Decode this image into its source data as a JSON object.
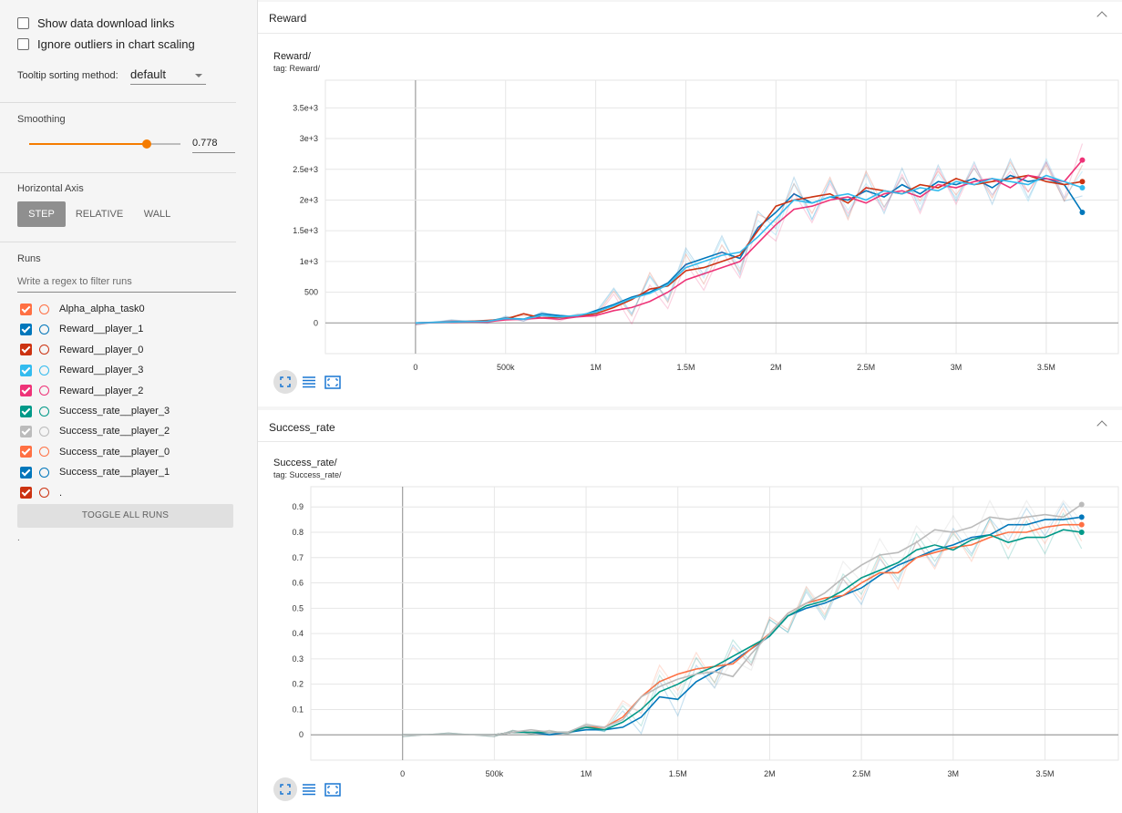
{
  "sidebar": {
    "show_download": "Show data download links",
    "ignore_outliers": "Ignore outliers in chart scaling",
    "tooltip_label": "Tooltip sorting method:",
    "tooltip_value": "default",
    "smoothing_label": "Smoothing",
    "smoothing_value": "0.778",
    "smoothing_fraction": 0.778,
    "horizontal_axis_label": "Horizontal Axis",
    "axis_options": [
      "STEP",
      "RELATIVE",
      "WALL"
    ],
    "runs_label": "Runs",
    "filter_placeholder": "Write a regex to filter runs",
    "runs": [
      {
        "name": "Alpha_alpha_task0",
        "color": "#ff7043"
      },
      {
        "name": "Reward__player_1",
        "color": "#0077bb"
      },
      {
        "name": "Reward__player_0",
        "color": "#cc3311"
      },
      {
        "name": "Reward__player_3",
        "color": "#33bbee"
      },
      {
        "name": "Reward__player_2",
        "color": "#ee3377"
      },
      {
        "name": "Success_rate__player_3",
        "color": "#009988"
      },
      {
        "name": "Success_rate__player_2",
        "color": "#bbbbbb"
      },
      {
        "name": "Success_rate__player_0",
        "color": "#ff7043"
      },
      {
        "name": "Success_rate__player_1",
        "color": "#0077bb"
      },
      {
        "name": ".",
        "color": "#cc3311"
      }
    ],
    "toggle_all": "TOGGLE ALL RUNS",
    "footer_dot": "."
  },
  "reward_card": {
    "header": "Reward",
    "chart_title": "Reward/",
    "chart_tag": "tag: Reward/"
  },
  "success_card": {
    "header": "Success_rate",
    "chart_title": "Success_rate/",
    "chart_tag": "tag: Success_rate/"
  },
  "icons": {
    "zoom": "fit-to-screen-icon",
    "data": "data-table-icon",
    "expand": "expand-chart-icon"
  },
  "chart_data": [
    {
      "type": "line",
      "title": "Reward/",
      "x_tick_labels": [
        "0",
        "500k",
        "1M",
        "1.5M",
        "2M",
        "2.5M",
        "3M",
        "3.5M"
      ],
      "y_tick_labels": [
        "0",
        "500",
        "1e+3",
        "1.5e+3",
        "2e+3",
        "2.5e+3",
        "3e+3",
        "3.5e+3"
      ],
      "xlim": [
        -500000,
        3900000
      ],
      "ylim": [
        -500,
        3950
      ],
      "series": [
        {
          "name": "Reward__player_1",
          "color": "#0077bb",
          "x": [
            0,
            200000,
            400000,
            500000,
            600000,
            700000,
            800000,
            900000,
            1000000,
            1100000,
            1200000,
            1300000,
            1400000,
            1500000,
            1600000,
            1700000,
            1800000,
            1900000,
            2000000,
            2100000,
            2200000,
            2300000,
            2400000,
            2500000,
            2600000,
            2700000,
            2800000,
            2900000,
            3000000,
            3100000,
            3200000,
            3300000,
            3400000,
            3500000,
            3600000,
            3700000
          ],
          "y": [
            0,
            20,
            30,
            80,
            60,
            150,
            120,
            100,
            200,
            300,
            420,
            500,
            650,
            950,
            1050,
            1150,
            1050,
            1550,
            1800,
            2100,
            1950,
            2050,
            2000,
            2150,
            2050,
            2250,
            2100,
            2300,
            2250,
            2350,
            2200,
            2400,
            2300,
            2350,
            2250,
            1800
          ]
        },
        {
          "name": "Reward__player_0",
          "color": "#cc3311",
          "x": [
            0,
            200000,
            400000,
            500000,
            600000,
            700000,
            800000,
            900000,
            1000000,
            1100000,
            1200000,
            1300000,
            1400000,
            1500000,
            1600000,
            1700000,
            1800000,
            1900000,
            2000000,
            2100000,
            2200000,
            2300000,
            2400000,
            2500000,
            2600000,
            2700000,
            2800000,
            2900000,
            3000000,
            3100000,
            3200000,
            3300000,
            3400000,
            3500000,
            3600000,
            3700000
          ],
          "y": [
            0,
            10,
            40,
            60,
            150,
            80,
            90,
            110,
            150,
            250,
            380,
            550,
            600,
            850,
            900,
            1000,
            1100,
            1500,
            1900,
            2000,
            2050,
            2100,
            1950,
            2200,
            2150,
            2100,
            2250,
            2200,
            2350,
            2250,
            2300,
            2350,
            2400,
            2300,
            2250,
            2300
          ]
        },
        {
          "name": "Reward__player_2",
          "color": "#ee3377",
          "x": [
            0,
            200000,
            400000,
            500000,
            600000,
            700000,
            800000,
            900000,
            1000000,
            1100000,
            1200000,
            1300000,
            1400000,
            1500000,
            1600000,
            1700000,
            1800000,
            1900000,
            2000000,
            2100000,
            2200000,
            2300000,
            2400000,
            2500000,
            2600000,
            2700000,
            2800000,
            2900000,
            3000000,
            3100000,
            3200000,
            3300000,
            3400000,
            3500000,
            3600000,
            3700000
          ],
          "y": [
            0,
            10,
            20,
            50,
            60,
            80,
            60,
            100,
            120,
            200,
            250,
            350,
            500,
            700,
            800,
            900,
            1000,
            1300,
            1600,
            1850,
            1900,
            2000,
            2050,
            1950,
            2100,
            2150,
            2050,
            2250,
            2200,
            2300,
            2350,
            2200,
            2400,
            2350,
            2300,
            2650
          ]
        },
        {
          "name": "Reward__player_3",
          "color": "#33bbee",
          "x": [
            0,
            200000,
            400000,
            500000,
            600000,
            700000,
            800000,
            900000,
            1000000,
            1100000,
            1200000,
            1300000,
            1400000,
            1500000,
            1600000,
            1700000,
            1800000,
            1900000,
            2000000,
            2100000,
            2200000,
            2300000,
            2400000,
            2500000,
            2600000,
            2700000,
            2800000,
            2900000,
            3000000,
            3100000,
            3200000,
            3300000,
            3400000,
            3500000,
            3600000,
            3700000
          ],
          "y": [
            0,
            15,
            30,
            70,
            60,
            120,
            100,
            120,
            180,
            280,
            400,
            480,
            620,
            900,
            1000,
            1100,
            1150,
            1400,
            1700,
            2000,
            1950,
            2050,
            2100,
            2000,
            2150,
            2100,
            2200,
            2150,
            2300,
            2250,
            2350,
            2300,
            2250,
            2400,
            2300,
            2200
          ]
        }
      ]
    },
    {
      "type": "line",
      "title": "Success_rate/",
      "x_tick_labels": [
        "0",
        "500k",
        "1M",
        "1.5M",
        "2M",
        "2.5M",
        "3M",
        "3.5M"
      ],
      "y_tick_labels": [
        "0",
        "0.1",
        "0.2",
        "0.3",
        "0.4",
        "0.5",
        "0.6",
        "0.7",
        "0.8",
        "0.9"
      ],
      "xlim": [
        -500000,
        3900000
      ],
      "ylim": [
        -0.1,
        0.98
      ],
      "series": [
        {
          "name": "Success_rate__player_1",
          "color": "#0077bb",
          "x": [
            0,
            250000,
            500000,
            600000,
            700000,
            800000,
            900000,
            1000000,
            1100000,
            1200000,
            1300000,
            1400000,
            1500000,
            1600000,
            1700000,
            1800000,
            1900000,
            2000000,
            2100000,
            2200000,
            2300000,
            2400000,
            2500000,
            2600000,
            2700000,
            2800000,
            2900000,
            3000000,
            3100000,
            3200000,
            3300000,
            3400000,
            3500000,
            3600000,
            3700000
          ],
          "y": [
            0,
            0,
            0,
            0.01,
            0.01,
            0.0,
            0.01,
            0.02,
            0.02,
            0.03,
            0.07,
            0.15,
            0.14,
            0.21,
            0.25,
            0.29,
            0.34,
            0.39,
            0.47,
            0.5,
            0.52,
            0.55,
            0.58,
            0.63,
            0.67,
            0.7,
            0.73,
            0.75,
            0.78,
            0.79,
            0.83,
            0.83,
            0.85,
            0.85,
            0.86
          ]
        },
        {
          "name": "Success_rate__player_0",
          "color": "#ff7043",
          "x": [
            0,
            250000,
            500000,
            600000,
            700000,
            800000,
            900000,
            1000000,
            1100000,
            1200000,
            1300000,
            1400000,
            1500000,
            1600000,
            1700000,
            1800000,
            1900000,
            2000000,
            2100000,
            2200000,
            2300000,
            2400000,
            2500000,
            2600000,
            2700000,
            2800000,
            2900000,
            3000000,
            3100000,
            3200000,
            3300000,
            3400000,
            3500000,
            3600000,
            3700000
          ],
          "y": [
            0,
            0,
            0,
            0.01,
            0.01,
            0.01,
            0.01,
            0.03,
            0.03,
            0.07,
            0.15,
            0.21,
            0.24,
            0.26,
            0.27,
            0.28,
            0.34,
            0.4,
            0.48,
            0.52,
            0.54,
            0.55,
            0.6,
            0.64,
            0.64,
            0.7,
            0.72,
            0.74,
            0.75,
            0.78,
            0.8,
            0.8,
            0.82,
            0.83,
            0.83
          ]
        },
        {
          "name": "Success_rate__player_3",
          "color": "#009988",
          "x": [
            0,
            250000,
            500000,
            600000,
            700000,
            800000,
            900000,
            1000000,
            1100000,
            1200000,
            1300000,
            1400000,
            1500000,
            1600000,
            1700000,
            1800000,
            1900000,
            2000000,
            2100000,
            2200000,
            2300000,
            2400000,
            2500000,
            2600000,
            2700000,
            2800000,
            2900000,
            3000000,
            3100000,
            3200000,
            3300000,
            3400000,
            3500000,
            3600000,
            3700000
          ],
          "y": [
            0,
            0,
            0,
            0.01,
            0.01,
            0.01,
            0.01,
            0.03,
            0.02,
            0.05,
            0.1,
            0.17,
            0.2,
            0.24,
            0.27,
            0.31,
            0.35,
            0.39,
            0.47,
            0.51,
            0.53,
            0.57,
            0.62,
            0.65,
            0.68,
            0.73,
            0.75,
            0.73,
            0.77,
            0.79,
            0.76,
            0.78,
            0.78,
            0.81,
            0.8
          ]
        },
        {
          "name": "Success_rate__player_2",
          "color": "#bbbbbb",
          "x": [
            0,
            250000,
            500000,
            600000,
            700000,
            800000,
            900000,
            1000000,
            1100000,
            1200000,
            1300000,
            1400000,
            1500000,
            1600000,
            1700000,
            1800000,
            1900000,
            2000000,
            2100000,
            2200000,
            2300000,
            2400000,
            2500000,
            2600000,
            2700000,
            2800000,
            2900000,
            3000000,
            3100000,
            3200000,
            3300000,
            3400000,
            3500000,
            3600000,
            3700000
          ],
          "y": [
            0,
            0,
            0,
            0.01,
            0.02,
            0.01,
            0.01,
            0.04,
            0.03,
            0.06,
            0.15,
            0.19,
            0.22,
            0.24,
            0.25,
            0.23,
            0.32,
            0.4,
            0.48,
            0.52,
            0.56,
            0.62,
            0.67,
            0.71,
            0.72,
            0.76,
            0.81,
            0.8,
            0.82,
            0.86,
            0.85,
            0.86,
            0.87,
            0.86,
            0.91
          ]
        }
      ]
    }
  ]
}
